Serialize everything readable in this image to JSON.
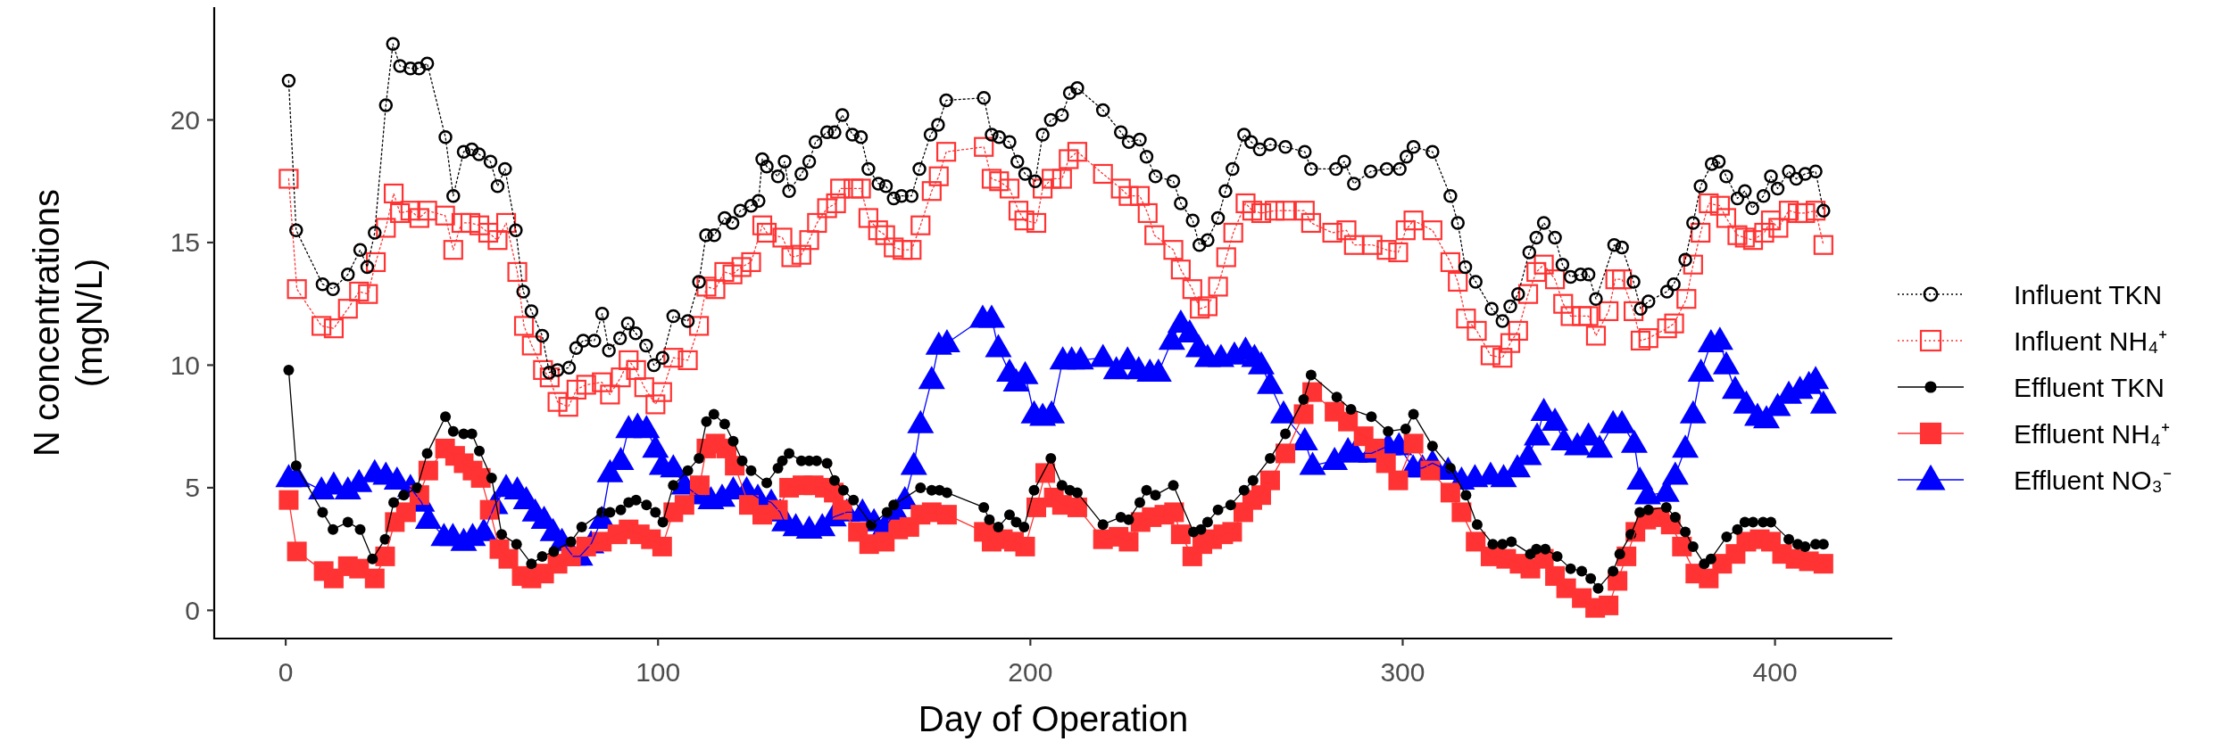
{
  "chart_data": {
    "type": "line",
    "xlabel": "Day of Operation",
    "ylabel": "N concentrations\n(mgN/L)",
    "xlim": [
      -19.2,
      431.5
    ],
    "ylim": [
      -1.15,
      24.6
    ],
    "xticks": [
      0,
      100,
      200,
      300,
      400
    ],
    "yticks": [
      0,
      5,
      10,
      15,
      20
    ],
    "grid": false,
    "legend": "right",
    "series": [
      {
        "name": "Influent TKN",
        "color": "#000000",
        "marker": "circle",
        "line_style": "dotted",
        "x": [
          0.8,
          2.8,
          9.9,
          12.7,
          16.7,
          20.0,
          21.9,
          23.9,
          26.9,
          28.8,
          30.7,
          33.5,
          35.8,
          38.0,
          42.9,
          45.0,
          47.8,
          50.0,
          51.9,
          55.0,
          56.9,
          58.9,
          61.8,
          63.8,
          66.0,
          68.9,
          70.8,
          73.0,
          76.1,
          78.0,
          79.9,
          82.9,
          85.0,
          86.8,
          89.8,
          91.9,
          94.0,
          96.8,
          98.9,
          101.2,
          104.1,
          108.0,
          111.0,
          112.9,
          115.1,
          117.9,
          120.0,
          122.1,
          125.0,
          127.0,
          128.0,
          129.2,
          132.2,
          134.0,
          135.2,
          138.5,
          140.6,
          142.3,
          145.4,
          147.4,
          149.5,
          152.2,
          154.5,
          156.5,
          159.2,
          161.2,
          163.3,
          165.4,
          168.1,
          170.2,
          173.2,
          175.2,
          177.4,
          187.5,
          189.6,
          191.6,
          194.4,
          196.5,
          198.6,
          201.3,
          203.3,
          205.5,
          208.5,
          210.6,
          212.6,
          219.5,
          224.3,
          226.4,
          229.4,
          231.2,
          233.6,
          238.4,
          240.4,
          243.6,
          245.4,
          247.6,
          250.4,
          252.4,
          254.3,
          257.4,
          259.3,
          261.6,
          264.4,
          268.5,
          273.7,
          275.4,
          282.1,
          284.3,
          286.9,
          291.4,
          295.7,
          299.2,
          301.0,
          302.9,
          308.0,
          312.8,
          314.8,
          316.8,
          319.6,
          323.9,
          326.8,
          328.9,
          331.0,
          334.0,
          335.9,
          337.9,
          340.9,
          342.9,
          345.1,
          347.8,
          349.9,
          351.9,
          356.8,
          358.9,
          362.0,
          363.9,
          366.0,
          371.0,
          372.8,
          375.9,
          378.0,
          380.0,
          383.0,
          384.9,
          386.9,
          389.9,
          391.9,
          393.9,
          396.9,
          398.9,
          400.7,
          403.7,
          405.7,
          408.1,
          410.9,
          413.0
        ],
        "values": [
          21.6,
          15.5,
          13.3,
          13.1,
          13.7,
          14.7,
          14.0,
          15.4,
          20.6,
          23.1,
          22.2,
          22.1,
          22.1,
          22.3,
          19.3,
          16.9,
          18.7,
          18.8,
          18.6,
          18.3,
          17.3,
          18.0,
          15.5,
          13.0,
          12.2,
          11.2,
          9.7,
          9.8,
          9.9,
          10.7,
          11.0,
          11.0,
          12.1,
          10.6,
          11.1,
          11.7,
          11.3,
          10.8,
          10.0,
          10.3,
          12.0,
          11.8,
          13.4,
          15.3,
          15.3,
          16.0,
          15.8,
          16.3,
          16.5,
          16.7,
          18.4,
          18.1,
          17.7,
          18.3,
          17.1,
          17.8,
          18.3,
          19.1,
          19.5,
          19.5,
          20.2,
          19.4,
          19.3,
          18.0,
          17.4,
          17.3,
          16.8,
          16.9,
          16.9,
          18.0,
          19.4,
          19.8,
          20.8,
          20.9,
          19.4,
          19.3,
          19.1,
          18.3,
          17.8,
          17.5,
          19.4,
          20.0,
          20.2,
          21.1,
          21.3,
          20.4,
          19.5,
          19.1,
          19.2,
          18.5,
          17.7,
          17.5,
          16.6,
          15.9,
          14.9,
          15.1,
          16.0,
          17.1,
          18.0,
          19.4,
          19.1,
          18.8,
          19.0,
          18.9,
          18.7,
          18.0,
          18.0,
          18.3,
          17.4,
          17.9,
          18.0,
          18.0,
          18.5,
          18.9,
          18.7,
          16.9,
          15.8,
          14.0,
          13.4,
          12.3,
          11.8,
          12.4,
          12.9,
          14.6,
          15.2,
          15.8,
          15.2,
          14.1,
          13.6,
          13.7,
          13.7,
          12.7,
          14.9,
          14.8,
          13.4,
          12.3,
          12.6,
          13.0,
          13.3,
          14.3,
          15.8,
          17.3,
          18.2,
          18.3,
          17.7,
          16.8,
          17.1,
          16.4,
          16.9,
          17.7,
          17.2,
          17.9,
          17.6,
          17.8,
          17.9,
          16.3
        ]
      },
      {
        "name": "Influent NH₄⁺",
        "color": "#ff3333",
        "marker": "square",
        "line_style": "dotted",
        "x": [
          0.8,
          3.0,
          9.6,
          12.9,
          16.7,
          19.7,
          22.1,
          24.2,
          26.9,
          29.0,
          30.7,
          33.5,
          35.9,
          38.0,
          42.8,
          45.0,
          47.2,
          49.6,
          52.0,
          54.4,
          56.9,
          59.2,
          62.2,
          64.0,
          66.1,
          69.1,
          70.9,
          73.0,
          75.9,
          78.1,
          80.7,
          84.9,
          87.1,
          90.0,
          92.1,
          94.1,
          96.3,
          99.3,
          101.1,
          104.1,
          108.0,
          111.0,
          113.0,
          115.4,
          117.8,
          120.0,
          122.4,
          125.0,
          128.0,
          129.2,
          133.4,
          135.8,
          138.5,
          140.6,
          142.7,
          145.4,
          147.8,
          148.9,
          152.5,
          154.5,
          156.5,
          159.1,
          161.0,
          163.3,
          165.7,
          168.1,
          170.5,
          173.5,
          175.4,
          177.4,
          187.5,
          189.6,
          191.6,
          194.4,
          196.8,
          198.4,
          201.6,
          203.3,
          205.7,
          208.5,
          210.3,
          212.6,
          219.5,
          224.3,
          226.4,
          229.4,
          231.5,
          233.3,
          238.4,
          240.4,
          243.5,
          245.5,
          247.6,
          250.4,
          252.6,
          254.5,
          257.8,
          259.6,
          262.0,
          265.6,
          268.5,
          273.7,
          275.4,
          281.1,
          284.9,
          286.9,
          291.9,
          295.7,
          298.8,
          300.8,
          302.9,
          308.0,
          312.8,
          314.8,
          317.0,
          319.9,
          323.6,
          326.8,
          328.9,
          331.0,
          333.7,
          335.9,
          337.9,
          340.9,
          343.1,
          345.1,
          348.1,
          349.9,
          351.9,
          355.3,
          357.1,
          358.9,
          362.0,
          363.9,
          366.0,
          371.0,
          372.9,
          376.2,
          378.0,
          380.0,
          382.2,
          385.2,
          386.9,
          389.9,
          391.9,
          394.1,
          397.1,
          398.9,
          400.9,
          403.7,
          406.1,
          408.1,
          410.9,
          413.0
        ],
        "values": [
          17.6,
          13.1,
          11.6,
          11.5,
          12.3,
          13.0,
          12.9,
          14.2,
          15.6,
          17.0,
          16.2,
          16.3,
          16.0,
          16.3,
          16.1,
          14.7,
          15.8,
          15.8,
          15.7,
          15.4,
          15.1,
          15.8,
          13.8,
          11.6,
          10.8,
          9.8,
          9.5,
          8.5,
          8.3,
          9.0,
          9.2,
          9.3,
          8.8,
          9.5,
          10.2,
          9.8,
          9.1,
          8.4,
          8.9,
          10.3,
          10.2,
          11.6,
          13.2,
          13.1,
          13.8,
          13.7,
          14.0,
          14.2,
          15.7,
          15.4,
          15.2,
          14.4,
          14.5,
          15.1,
          15.8,
          16.4,
          16.6,
          17.2,
          17.2,
          17.2,
          16.0,
          15.5,
          15.3,
          14.8,
          14.7,
          14.7,
          15.7,
          17.1,
          17.7,
          18.7,
          18.9,
          17.6,
          17.5,
          17.2,
          16.3,
          15.9,
          15.8,
          17.2,
          17.6,
          17.6,
          18.4,
          18.7,
          17.8,
          17.2,
          16.9,
          16.9,
          16.2,
          15.3,
          14.7,
          13.9,
          13.1,
          12.3,
          12.4,
          13.2,
          14.4,
          15.4,
          16.6,
          16.3,
          16.2,
          16.3,
          16.3,
          16.3,
          15.8,
          15.4,
          15.5,
          14.9,
          14.9,
          14.7,
          14.6,
          15.5,
          15.9,
          15.5,
          14.2,
          13.4,
          11.9,
          11.4,
          10.4,
          10.3,
          10.9,
          11.4,
          12.9,
          13.8,
          14.1,
          13.5,
          12.5,
          12.0,
          12.0,
          12.0,
          11.2,
          12.2,
          13.5,
          13.5,
          12.2,
          11.0,
          11.1,
          11.5,
          11.7,
          12.7,
          14.1,
          15.4,
          16.6,
          16.5,
          16.0,
          15.3,
          15.2,
          15.1,
          15.4,
          15.9,
          15.6,
          16.3,
          16.2,
          16.2,
          16.3,
          14.9
        ]
      },
      {
        "name": "Effluent TKN",
        "color": "#000000",
        "marker": "circle",
        "line_style": "solid",
        "x": [
          0.8,
          2.8,
          9.9,
          12.7,
          16.7,
          20.0,
          23.3,
          26.7,
          29.0,
          31.7,
          35.3,
          38.0,
          42.9,
          45.0,
          47.8,
          50.0,
          52.0,
          55.3,
          58.0,
          62.0,
          66.0,
          68.9,
          72.0,
          76.6,
          79.5,
          84.9,
          87.1,
          90.0,
          92.1,
          94.1,
          96.9,
          99.3,
          101.3,
          104.1,
          108.0,
          111.0,
          113.0,
          115.0,
          117.9,
          120.2,
          122.6,
          125.0,
          129.2,
          132.2,
          133.4,
          135.2,
          138.5,
          140.6,
          142.6,
          145.4,
          147.4,
          149.8,
          152.5,
          157.3,
          161.5,
          163.3,
          170.5,
          173.5,
          175.6,
          177.6,
          187.5,
          189.0,
          191.4,
          194.4,
          196.2,
          198.3,
          201.0,
          205.5,
          208.5,
          210.6,
          212.6,
          219.5,
          224.3,
          226.4,
          229.4,
          231.2,
          233.6,
          238.4,
          243.8,
          245.8,
          247.6,
          250.4,
          253.8,
          257.4,
          259.8,
          264.4,
          268.5,
          273.4,
          275.4,
          282.3,
          286.1,
          291.6,
          296.1,
          300.8,
          302.9,
          308.0,
          312.8,
          317.0,
          320.0,
          324.2,
          326.8,
          329.2,
          334.3,
          335.9,
          338.3,
          341.5,
          345.1,
          348.1,
          350.5,
          352.5,
          356.5,
          358.3,
          361.3,
          363.7,
          366.0,
          370.8,
          373.2,
          375.9,
          378.0,
          381.0,
          382.8,
          387.0,
          389.9,
          391.9,
          394.1,
          396.8,
          398.9,
          403.7,
          406.1,
          408.1,
          410.9,
          413.0
        ],
        "values": [
          9.8,
          5.9,
          4.0,
          3.3,
          3.6,
          3.3,
          2.1,
          2.9,
          4.4,
          4.7,
          5.0,
          6.4,
          7.9,
          7.3,
          7.2,
          7.2,
          6.5,
          5.4,
          3.1,
          2.7,
          1.9,
          2.2,
          2.4,
          2.8,
          3.4,
          4.0,
          4.0,
          4.1,
          4.4,
          4.5,
          4.3,
          4.0,
          3.6,
          5.1,
          5.7,
          6.2,
          7.7,
          8.0,
          7.6,
          6.9,
          6.1,
          5.7,
          5.2,
          5.8,
          6.1,
          6.4,
          6.1,
          6.1,
          6.1,
          6.0,
          5.3,
          4.9,
          4.5,
          3.5,
          4.0,
          4.3,
          5.0,
          4.9,
          4.9,
          4.8,
          4.2,
          3.7,
          3.4,
          3.9,
          3.6,
          3.4,
          4.9,
          6.2,
          5.1,
          4.9,
          4.8,
          3.5,
          3.8,
          3.7,
          4.4,
          4.9,
          4.7,
          5.1,
          3.2,
          3.3,
          3.6,
          4.1,
          4.3,
          4.9,
          5.3,
          6.2,
          7.2,
          8.6,
          9.6,
          8.7,
          8.2,
          7.9,
          7.3,
          7.4,
          8.0,
          6.7,
          5.8,
          4.7,
          3.5,
          2.7,
          2.7,
          2.8,
          2.3,
          2.5,
          2.5,
          2.2,
          1.7,
          1.6,
          1.3,
          0.9,
          1.6,
          2.3,
          3.1,
          4.0,
          4.1,
          4.2,
          3.8,
          3.2,
          2.6,
          1.9,
          2.1,
          3.0,
          3.3,
          3.6,
          3.6,
          3.6,
          3.6,
          2.9,
          2.7,
          2.6,
          2.7,
          2.7
        ]
      },
      {
        "name": "Effluent NH₄⁺",
        "color": "#ff3333",
        "marker": "square",
        "line_style": "solid",
        "x": [
          0.8,
          3.0,
          10.2,
          12.9,
          16.7,
          19.7,
          23.9,
          26.7,
          29.3,
          32.3,
          35.9,
          38.3,
          42.8,
          45.5,
          47.8,
          50.2,
          52.4,
          54.8,
          57.4,
          59.8,
          63.4,
          66.0,
          69.4,
          73.0,
          76.6,
          80.7,
          84.9,
          89.1,
          92.1,
          95.1,
          98.1,
          101.1,
          104.1,
          107.1,
          111.2,
          113.0,
          115.4,
          118.4,
          120.6,
          124.4,
          128.0,
          132.2,
          135.2,
          138.8,
          141.8,
          144.8,
          147.2,
          149.5,
          153.7,
          156.7,
          160.9,
          164.5,
          167.5,
          170.5,
          173.5,
          177.6,
          187.5,
          189.6,
          192.6,
          195.6,
          198.6,
          201.6,
          204.0,
          206.3,
          208.5,
          212.6,
          219.5,
          223.7,
          226.4,
          229.6,
          232.6,
          236.0,
          238.6,
          240.4,
          243.5,
          246.2,
          248.8,
          251.8,
          254.2,
          257.2,
          259.6,
          262.0,
          264.4,
          268.5,
          273.4,
          275.7,
          281.7,
          285.3,
          289.5,
          292.5,
          295.5,
          298.8,
          302.9,
          307.4,
          312.8,
          315.8,
          319.6,
          323.6,
          327.8,
          331.4,
          334.3,
          337.9,
          340.9,
          343.9,
          348.1,
          351.7,
          355.3,
          357.7,
          360.1,
          362.5,
          365.4,
          369.0,
          372.0,
          375.0,
          378.6,
          382.2,
          385.8,
          389.4,
          392.3,
          395.9,
          398.9,
          401.9,
          405.5,
          409.1,
          413.0
        ],
        "values": [
          4.5,
          2.4,
          1.6,
          1.3,
          1.8,
          1.7,
          1.3,
          2.2,
          3.6,
          4.0,
          4.7,
          5.7,
          6.6,
          6.3,
          6.0,
          5.7,
          5.4,
          4.1,
          2.5,
          2.1,
          1.4,
          1.3,
          1.5,
          1.9,
          2.2,
          2.6,
          2.8,
          3.1,
          3.3,
          3.1,
          2.9,
          2.6,
          4.0,
          4.3,
          5.1,
          6.6,
          6.8,
          6.6,
          5.9,
          4.3,
          3.9,
          4.1,
          5.0,
          5.1,
          5.1,
          5.0,
          4.8,
          4.1,
          3.2,
          2.7,
          2.8,
          3.3,
          3.4,
          3.9,
          4.0,
          3.9,
          3.2,
          2.8,
          2.9,
          2.8,
          2.6,
          4.2,
          5.6,
          4.6,
          4.3,
          4.2,
          2.9,
          3.0,
          2.8,
          3.6,
          3.8,
          3.9,
          4.0,
          3.1,
          2.2,
          2.7,
          2.9,
          3.1,
          3.2,
          4.0,
          4.5,
          4.7,
          5.3,
          6.4,
          8.0,
          8.9,
          8.1,
          7.7,
          7.1,
          6.6,
          6.0,
          5.3,
          6.8,
          5.7,
          4.8,
          4.0,
          2.8,
          2.2,
          2.1,
          1.9,
          1.7,
          2.1,
          1.4,
          0.9,
          0.5,
          0.1,
          0.2,
          1.2,
          2.2,
          3.2,
          3.7,
          3.8,
          3.5,
          2.6,
          1.5,
          1.3,
          1.9,
          2.3,
          2.8,
          2.9,
          2.8,
          2.3,
          2.1,
          2.0,
          1.9
        ]
      },
      {
        "name": "Effluent NO₃⁻",
        "color": "#0000ff",
        "marker": "triangle",
        "line_style": "solid",
        "x": [
          0.8,
          3.0,
          9.6,
          12.9,
          16.7,
          19.7,
          23.9,
          26.9,
          29.9,
          33.5,
          36.5,
          38.3,
          42.5,
          44.9,
          47.8,
          50.2,
          53.2,
          56.2,
          59.2,
          62.2,
          64.6,
          67.0,
          69.4,
          71.8,
          74.2,
          77.2,
          79.0,
          82.0,
          84.9,
          87.1,
          90.0,
          92.1,
          94.5,
          96.9,
          99.3,
          101.1,
          104.1,
          107.1,
          110.6,
          114.2,
          117.2,
          120.2,
          123.8,
          126.8,
          130.4,
          132.8,
          134.0,
          137.0,
          140.6,
          144.1,
          147.1,
          150.7,
          154.9,
          158.0,
          160.9,
          163.9,
          166.3,
          168.7,
          170.5,
          173.5,
          175.4,
          177.6,
          187.2,
          189.6,
          191.4,
          194.4,
          196.2,
          198.6,
          201.0,
          203.3,
          205.7,
          208.7,
          211.1,
          213.5,
          219.5,
          223.1,
          226.1,
          229.1,
          232.1,
          234.4,
          238.0,
          240.4,
          242.8,
          245.2,
          247.6,
          251.2,
          254.8,
          257.8,
          260.2,
          262.0,
          264.4,
          268.0,
          273.7,
          275.8,
          281.7,
          285.3,
          287.1,
          291.6,
          296.1,
          299.0,
          302.8,
          305.3,
          308.0,
          312.2,
          315.8,
          319.4,
          323.6,
          327.1,
          330.8,
          333.8,
          336.1,
          337.9,
          340.9,
          343.3,
          346.9,
          349.9,
          352.9,
          356.5,
          358.9,
          362.2,
          363.7,
          365.8,
          370.8,
          373.2,
          375.9,
          378.0,
          380.1,
          382.8,
          385.2,
          386.9,
          389.3,
          392.3,
          395.3,
          397.7,
          400.7,
          403.7,
          406.7,
          409.1,
          410.9,
          413.0
        ],
        "values": [
          5.4,
          5.4,
          4.9,
          5.1,
          4.9,
          5.2,
          5.6,
          5.5,
          5.3,
          5.0,
          4.4,
          3.7,
          3.0,
          3.0,
          2.8,
          3.0,
          3.2,
          4.3,
          5.0,
          4.9,
          4.5,
          4.0,
          3.7,
          3.2,
          2.8,
          2.2,
          2.2,
          2.7,
          3.7,
          5.6,
          6.1,
          7.4,
          7.5,
          7.4,
          6.6,
          5.9,
          5.8,
          5.1,
          4.7,
          4.5,
          4.6,
          4.9,
          4.9,
          4.6,
          4.4,
          4.0,
          3.6,
          3.4,
          3.3,
          3.4,
          3.8,
          4.0,
          4.0,
          3.6,
          3.4,
          4.0,
          4.5,
          5.9,
          7.6,
          9.4,
          10.8,
          10.9,
          11.9,
          11.9,
          10.7,
          9.7,
          9.3,
          9.6,
          8.0,
          7.9,
          8.0,
          10.2,
          10.2,
          10.2,
          10.3,
          9.8,
          10.2,
          9.8,
          9.7,
          9.7,
          11.0,
          11.7,
          11.3,
          10.7,
          10.3,
          10.3,
          10.4,
          10.6,
          10.3,
          10.0,
          9.2,
          8.0,
          6.9,
          5.9,
          6.1,
          6.5,
          6.4,
          6.4,
          6.7,
          6.7,
          5.8,
          5.8,
          6.0,
          5.7,
          5.3,
          5.4,
          5.5,
          5.4,
          5.8,
          6.3,
          7.1,
          8.1,
          7.7,
          6.9,
          6.7,
          7.1,
          6.6,
          7.6,
          7.6,
          6.8,
          5.3,
          4.7,
          4.8,
          5.5,
          6.6,
          8.0,
          9.7,
          10.9,
          11.0,
          10.0,
          9.0,
          8.4,
          7.9,
          7.8,
          8.3,
          8.8,
          9.0,
          9.2,
          9.4,
          8.4
        ]
      }
    ]
  }
}
